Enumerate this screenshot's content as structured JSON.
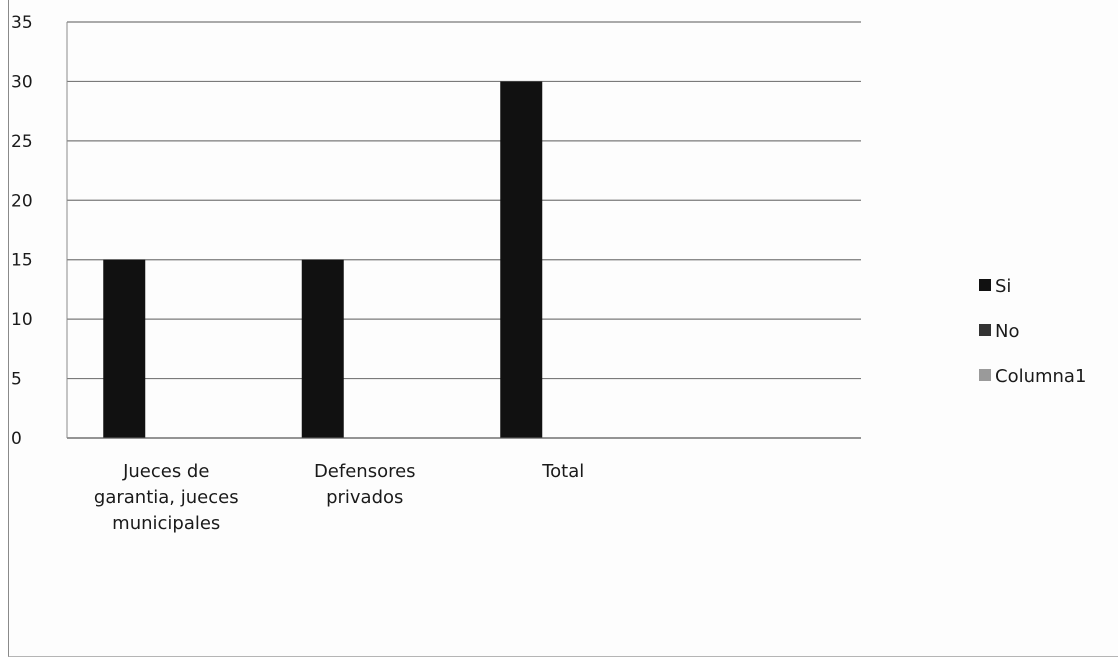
{
  "chart_data": {
    "type": "bar",
    "categories": [
      [
        "Jueces de",
        "garantia, jueces",
        "municipales"
      ],
      [
        "Defensores",
        "privados"
      ],
      [
        "Total"
      ],
      []
    ],
    "series": [
      {
        "name": "Si",
        "values": [
          15,
          15,
          30,
          null
        ],
        "color": "#111111"
      },
      {
        "name": "No",
        "values": [
          null,
          null,
          null,
          null
        ],
        "color": "#333333"
      },
      {
        "name": "Columna1",
        "values": [
          null,
          null,
          null,
          null
        ],
        "color": "#9a9a9a"
      }
    ],
    "title": "",
    "xlabel": "",
    "ylabel": "",
    "ylim": [
      0,
      35
    ],
    "yticks": [
      0,
      5,
      10,
      15,
      20,
      25,
      30,
      35
    ],
    "grid": true,
    "legend": "right"
  }
}
